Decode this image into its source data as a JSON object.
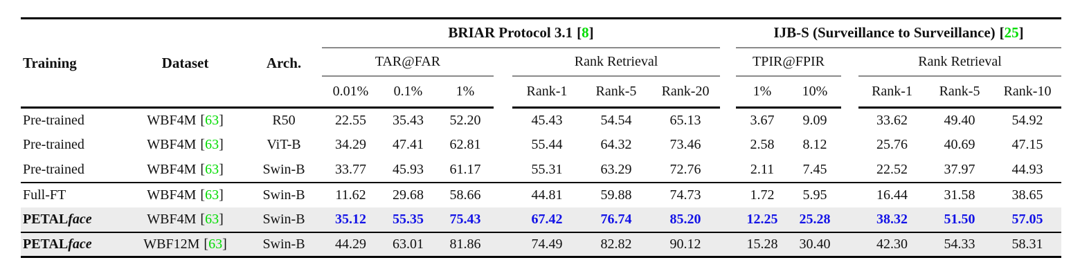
{
  "colors": {
    "citation_green": "#00DC00",
    "best_result_blue": "#1212E6",
    "highlight_row_gray": "#ECECEC",
    "heavy_rule": "#000000",
    "cmidrule_gray": "#8a8a8a"
  },
  "punct": {
    "lb": "[",
    "rb": "]"
  },
  "header": {
    "training": "Training",
    "dataset": "Dataset",
    "arch": "Arch.",
    "group1_title": "BRIAR Protocol 3.1",
    "group1_cite": "8",
    "group2_title": "IJB-S (Surveillance to Surveillance)",
    "group2_cite": "25",
    "group1_sub1": "TAR@FAR",
    "group1_sub2": "Rank Retrieval",
    "group2_sub1": "TPIR@FPIR",
    "group2_sub2": "Rank Retrieval",
    "cols": [
      "0.01%",
      "0.1%",
      "1%",
      "Rank-1",
      "Rank-5",
      "Rank-20",
      "1%",
      "10%",
      "Rank-1",
      "Rank-5",
      "Rank-10"
    ]
  },
  "rows": [
    {
      "training": "Pre-trained",
      "training_suffix": "",
      "dataset": "WBF4M",
      "cite": "63",
      "arch": "R50",
      "highlight": false,
      "blue": false,
      "section_start": false,
      "name_bold": false,
      "values": [
        "22.55",
        "35.43",
        "52.20",
        "45.43",
        "54.54",
        "65.13",
        "3.67",
        "9.09",
        "33.62",
        "49.40",
        "54.92"
      ]
    },
    {
      "training": "Pre-trained",
      "training_suffix": "",
      "dataset": "WBF4M",
      "cite": "63",
      "arch": "ViT-B",
      "highlight": false,
      "blue": false,
      "section_start": false,
      "name_bold": false,
      "values": [
        "34.29",
        "47.41",
        "62.81",
        "55.44",
        "64.32",
        "73.46",
        "2.58",
        "8.12",
        "25.76",
        "40.69",
        "47.15"
      ]
    },
    {
      "training": "Pre-trained",
      "training_suffix": "",
      "dataset": "WBF4M",
      "cite": "63",
      "arch": "Swin-B",
      "highlight": false,
      "blue": false,
      "section_start": false,
      "name_bold": false,
      "values": [
        "33.77",
        "45.93",
        "61.17",
        "55.31",
        "63.29",
        "72.76",
        "2.11",
        "7.45",
        "22.52",
        "37.97",
        "44.93"
      ]
    },
    {
      "training": "Full-FT",
      "training_suffix": "",
      "dataset": "WBF4M",
      "cite": "63",
      "arch": "Swin-B",
      "highlight": false,
      "blue": false,
      "section_start": true,
      "name_bold": false,
      "values": [
        "11.62",
        "29.68",
        "58.66",
        "44.81",
        "59.88",
        "74.73",
        "1.72",
        "5.95",
        "16.44",
        "31.58",
        "38.65"
      ]
    },
    {
      "training": "PETAL",
      "training_suffix": "face",
      "dataset": "WBF4M",
      "cite": "63",
      "arch": "Swin-B",
      "highlight": true,
      "blue": true,
      "section_start": false,
      "name_bold": true,
      "values": [
        "35.12",
        "55.35",
        "75.43",
        "67.42",
        "76.74",
        "85.20",
        "12.25",
        "25.28",
        "38.32",
        "51.50",
        "57.05"
      ]
    },
    {
      "training": "PETAL",
      "training_suffix": "face",
      "dataset": "WBF12M",
      "cite": "63",
      "arch": "Swin-B",
      "highlight": true,
      "blue": false,
      "section_start": true,
      "name_bold": true,
      "values": [
        "44.29",
        "63.01",
        "81.86",
        "74.49",
        "82.82",
        "90.12",
        "15.28",
        "30.40",
        "42.30",
        "54.33",
        "58.31"
      ]
    }
  ]
}
